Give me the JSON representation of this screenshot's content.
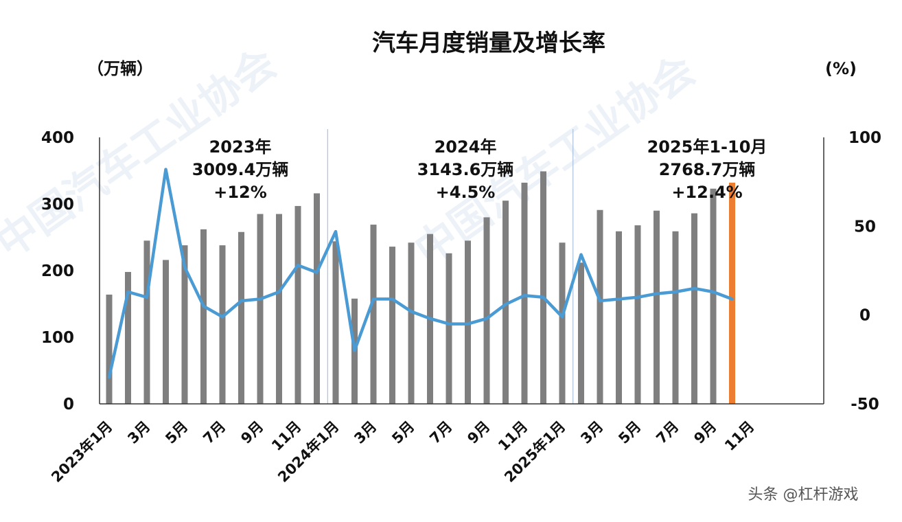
{
  "chart_data": {
    "type": "bar+line",
    "title": "汽车月度销量及增长率",
    "left_unit": "（万辆）",
    "right_unit": "(%)",
    "left_axis": {
      "ylim": [
        0,
        400
      ],
      "ticks": [
        "0",
        "100",
        "200",
        "300",
        "400"
      ]
    },
    "right_axis": {
      "ylim": [
        -50,
        100
      ],
      "ticks": [
        "-50",
        "0",
        "50",
        "100"
      ]
    },
    "x_tick_labels": [
      "2023年1月",
      "3月",
      "5月",
      "7月",
      "9月",
      "11月",
      "2024年1月",
      "3月",
      "5月",
      "7月",
      "9月",
      "11月",
      "2025年1月",
      "3月",
      "5月",
      "7月",
      "9月",
      "11月"
    ],
    "months": [
      "2023-01",
      "2023-02",
      "2023-03",
      "2023-04",
      "2023-05",
      "2023-06",
      "2023-07",
      "2023-08",
      "2023-09",
      "2023-10",
      "2023-11",
      "2023-12",
      "2024-01",
      "2024-02",
      "2024-03",
      "2024-04",
      "2024-05",
      "2024-06",
      "2024-07",
      "2024-08",
      "2024-09",
      "2024-10",
      "2024-11",
      "2024-12",
      "2025-01",
      "2025-02",
      "2025-03",
      "2025-04",
      "2025-05",
      "2025-06",
      "2025-07",
      "2025-08",
      "2025-09",
      "2025-10"
    ],
    "series": [
      {
        "kind": "bar",
        "axis": "left",
        "color": "#7f7f7f",
        "highlight_last_color": "#ed7d31",
        "values": [
          164,
          198,
          245,
          216,
          238,
          262,
          238,
          258,
          285,
          285,
          297,
          316,
          244,
          158,
          269,
          236,
          242,
          255,
          226,
          245,
          280,
          305,
          332,
          349,
          242,
          212,
          291,
          259,
          268,
          290,
          259,
          286,
          323,
          332
        ]
      },
      {
        "kind": "line",
        "axis": "right",
        "color": "#4a9ad4",
        "values": [
          -35,
          13,
          10,
          82,
          27,
          5,
          -1,
          8,
          9,
          13,
          28,
          24,
          47,
          -20,
          9,
          9,
          2,
          -2,
          -5,
          -5,
          -2,
          6,
          11,
          10,
          -1,
          34,
          8,
          9,
          10,
          12,
          13,
          15,
          13,
          9
        ]
      }
    ],
    "annotations": [
      {
        "lines": [
          "2023年",
          "3009.4万辆",
          "+12%"
        ]
      },
      {
        "lines": [
          "2024年",
          "3143.6万辆",
          "+4.5%"
        ]
      },
      {
        "lines": [
          "2025年1-10月",
          "2768.7万辆",
          "+12.4%"
        ]
      }
    ],
    "watermark": "头条 @杠杆游戏",
    "background_watermark": [
      "中国汽车工业协会",
      "中国汽车工业协会"
    ]
  }
}
